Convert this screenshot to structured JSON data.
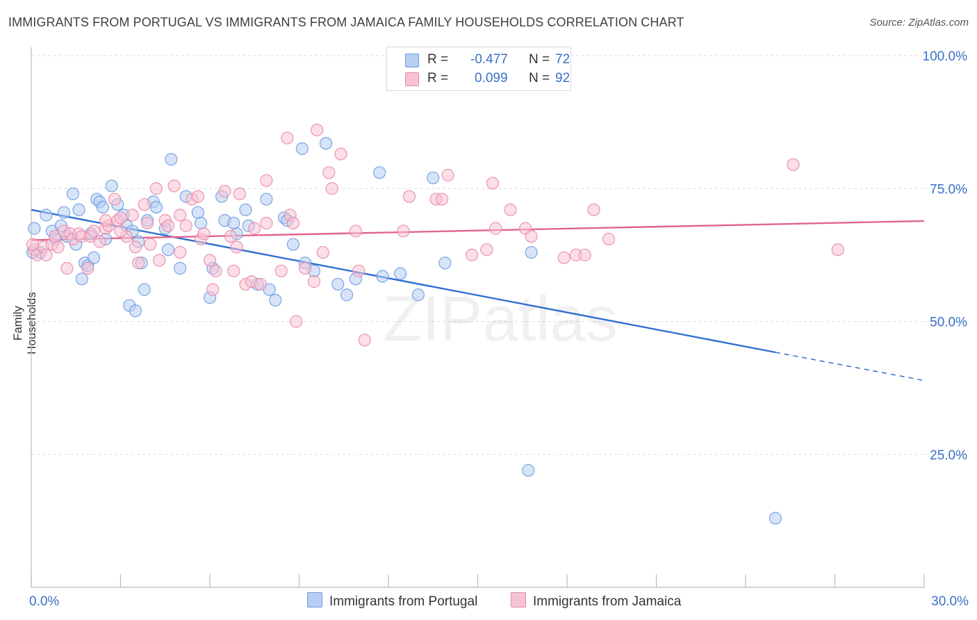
{
  "chart_data": {
    "type": "scatter",
    "title": "IMMIGRANTS FROM PORTUGAL VS IMMIGRANTS FROM JAMAICA FAMILY HOUSEHOLDS CORRELATION CHART",
    "source": "Source: ZipAtlas.com",
    "xlabel": "",
    "ylabel": "Family Households",
    "xlim": [
      0,
      30
    ],
    "ylim": [
      0,
      100
    ],
    "x_tick_labels": [
      "0.0%",
      "30.0%"
    ],
    "y_ticks": [
      25,
      50,
      75,
      100
    ],
    "y_tick_labels": [
      "25.0%",
      "50.0%",
      "75.0%",
      "100.0%"
    ],
    "grid": true,
    "watermark": "ZIPatlas",
    "legend": {
      "placement": "top-center",
      "rows": [
        {
          "r_label": "R =",
          "r_value": "-0.477",
          "n_label": "N =",
          "n_value": "72"
        },
        {
          "r_label": "R =",
          "r_value": "0.099",
          "n_label": "N =",
          "n_value": "92"
        }
      ]
    },
    "series": [
      {
        "name": "Immigrants from Portugal",
        "color": "#6b9be0",
        "fill": "#b7cef3",
        "trend": {
          "x0": 0,
          "y0": 71.0,
          "x1": 25.0,
          "y1": 44.2,
          "dashed_to_x": 30,
          "dashed_to_y": 38.9,
          "color": "#2f6fd2"
        },
        "points": [
          [
            0.1,
            67.5
          ],
          [
            0.3,
            63.0
          ],
          [
            0.5,
            70.0
          ],
          [
            0.7,
            67.0
          ],
          [
            0.8,
            65.5
          ],
          [
            1.0,
            68.0
          ],
          [
            1.1,
            70.5
          ],
          [
            1.2,
            66.0
          ],
          [
            1.4,
            74.0
          ],
          [
            1.5,
            64.5
          ],
          [
            1.6,
            71.0
          ],
          [
            1.7,
            58.0
          ],
          [
            1.8,
            61.0
          ],
          [
            1.9,
            60.5
          ],
          [
            2.0,
            66.5
          ],
          [
            2.1,
            62.0
          ],
          [
            2.2,
            73.0
          ],
          [
            2.3,
            72.5
          ],
          [
            2.4,
            71.5
          ],
          [
            2.5,
            65.5
          ],
          [
            2.7,
            75.5
          ],
          [
            2.9,
            72.0
          ],
          [
            3.1,
            70.0
          ],
          [
            3.2,
            68.0
          ],
          [
            3.3,
            53.0
          ],
          [
            3.4,
            67.0
          ],
          [
            3.5,
            52.0
          ],
          [
            3.6,
            65.0
          ],
          [
            3.7,
            61.0
          ],
          [
            3.8,
            56.0
          ],
          [
            3.9,
            69.0
          ],
          [
            4.1,
            72.5
          ],
          [
            4.2,
            71.5
          ],
          [
            4.5,
            67.5
          ],
          [
            4.6,
            63.5
          ],
          [
            4.7,
            80.5
          ],
          [
            5.0,
            60.0
          ],
          [
            5.2,
            73.5
          ],
          [
            5.6,
            70.5
          ],
          [
            5.7,
            68.5
          ],
          [
            6.0,
            54.5
          ],
          [
            6.1,
            60.0
          ],
          [
            6.4,
            73.5
          ],
          [
            6.5,
            69.0
          ],
          [
            6.8,
            68.5
          ],
          [
            6.9,
            66.5
          ],
          [
            7.2,
            71.0
          ],
          [
            7.3,
            68.0
          ],
          [
            7.6,
            57.0
          ],
          [
            7.9,
            73.0
          ],
          [
            8.0,
            56.0
          ],
          [
            8.2,
            54.0
          ],
          [
            8.5,
            69.5
          ],
          [
            8.6,
            69.0
          ],
          [
            8.8,
            64.5
          ],
          [
            9.1,
            82.5
          ],
          [
            9.2,
            61.0
          ],
          [
            9.5,
            59.5
          ],
          [
            9.9,
            83.5
          ],
          [
            10.3,
            57.0
          ],
          [
            10.6,
            55.0
          ],
          [
            10.9,
            58.0
          ],
          [
            11.7,
            78.0
          ],
          [
            11.8,
            58.5
          ],
          [
            12.4,
            59.0
          ],
          [
            13.0,
            55.0
          ],
          [
            13.5,
            77.0
          ],
          [
            13.9,
            61.0
          ],
          [
            16.8,
            63.0
          ],
          [
            16.7,
            22.0
          ],
          [
            25.0,
            13.0
          ],
          [
            0.05,
            63.0
          ]
        ]
      },
      {
        "name": "Immigrants from Jamaica",
        "color": "#e889a8",
        "fill": "#f7c3d4",
        "trend": {
          "x0": 0,
          "y0": 65.3,
          "x1": 30,
          "y1": 68.9,
          "color": "#e0648d"
        },
        "points": [
          [
            0.1,
            63.5
          ],
          [
            0.2,
            62.5
          ],
          [
            0.4,
            64.0
          ],
          [
            0.5,
            62.5
          ],
          [
            0.7,
            64.5
          ],
          [
            0.8,
            66.0
          ],
          [
            0.9,
            64.0
          ],
          [
            1.1,
            67.0
          ],
          [
            1.2,
            60.0
          ],
          [
            1.3,
            66.5
          ],
          [
            1.4,
            65.5
          ],
          [
            1.6,
            66.5
          ],
          [
            1.7,
            66.0
          ],
          [
            1.9,
            60.0
          ],
          [
            2.0,
            66.0
          ],
          [
            2.1,
            67.0
          ],
          [
            2.3,
            65.0
          ],
          [
            2.5,
            67.5
          ],
          [
            2.6,
            68.0
          ],
          [
            2.8,
            73.0
          ],
          [
            2.9,
            69.0
          ],
          [
            3.0,
            69.5
          ],
          [
            3.2,
            66.0
          ],
          [
            3.4,
            70.0
          ],
          [
            3.5,
            64.0
          ],
          [
            3.6,
            61.0
          ],
          [
            3.8,
            72.0
          ],
          [
            3.9,
            68.5
          ],
          [
            4.0,
            64.5
          ],
          [
            4.2,
            75.0
          ],
          [
            4.3,
            61.5
          ],
          [
            4.5,
            69.0
          ],
          [
            4.6,
            68.0
          ],
          [
            4.8,
            75.5
          ],
          [
            5.0,
            70.0
          ],
          [
            5.2,
            68.0
          ],
          [
            5.4,
            73.0
          ],
          [
            5.6,
            73.5
          ],
          [
            5.7,
            65.5
          ],
          [
            5.8,
            66.5
          ],
          [
            6.0,
            61.5
          ],
          [
            6.1,
            56.0
          ],
          [
            6.2,
            59.5
          ],
          [
            6.5,
            74.5
          ],
          [
            6.7,
            66.0
          ],
          [
            6.8,
            59.5
          ],
          [
            6.9,
            64.0
          ],
          [
            7.0,
            74.0
          ],
          [
            7.2,
            57.0
          ],
          [
            7.4,
            57.5
          ],
          [
            7.5,
            67.5
          ],
          [
            7.7,
            57.0
          ],
          [
            7.9,
            68.5
          ],
          [
            7.9,
            76.5
          ],
          [
            8.4,
            59.5
          ],
          [
            8.6,
            84.5
          ],
          [
            8.7,
            70.0
          ],
          [
            8.8,
            68.5
          ],
          [
            8.9,
            50.0
          ],
          [
            9.2,
            60.0
          ],
          [
            9.5,
            57.5
          ],
          [
            9.6,
            86.0
          ],
          [
            9.8,
            63.0
          ],
          [
            10.0,
            78.0
          ],
          [
            10.1,
            75.0
          ],
          [
            10.4,
            81.5
          ],
          [
            10.9,
            67.0
          ],
          [
            11.0,
            59.5
          ],
          [
            11.2,
            46.5
          ],
          [
            12.5,
            67.0
          ],
          [
            12.7,
            73.5
          ],
          [
            13.6,
            73.0
          ],
          [
            13.8,
            73.0
          ],
          [
            14.0,
            77.5
          ],
          [
            14.8,
            62.5
          ],
          [
            15.3,
            63.5
          ],
          [
            15.5,
            76.0
          ],
          [
            15.6,
            67.5
          ],
          [
            16.1,
            71.0
          ],
          [
            16.6,
            67.5
          ],
          [
            16.8,
            66.0
          ],
          [
            17.9,
            62.0
          ],
          [
            18.3,
            62.5
          ],
          [
            18.6,
            62.5
          ],
          [
            18.9,
            71.0
          ],
          [
            19.4,
            65.5
          ],
          [
            25.6,
            79.5
          ],
          [
            27.1,
            63.5
          ],
          [
            0.05,
            64.5
          ],
          [
            2.5,
            69.0
          ],
          [
            3.0,
            67.0
          ],
          [
            5.0,
            63.0
          ]
        ]
      }
    ]
  }
}
